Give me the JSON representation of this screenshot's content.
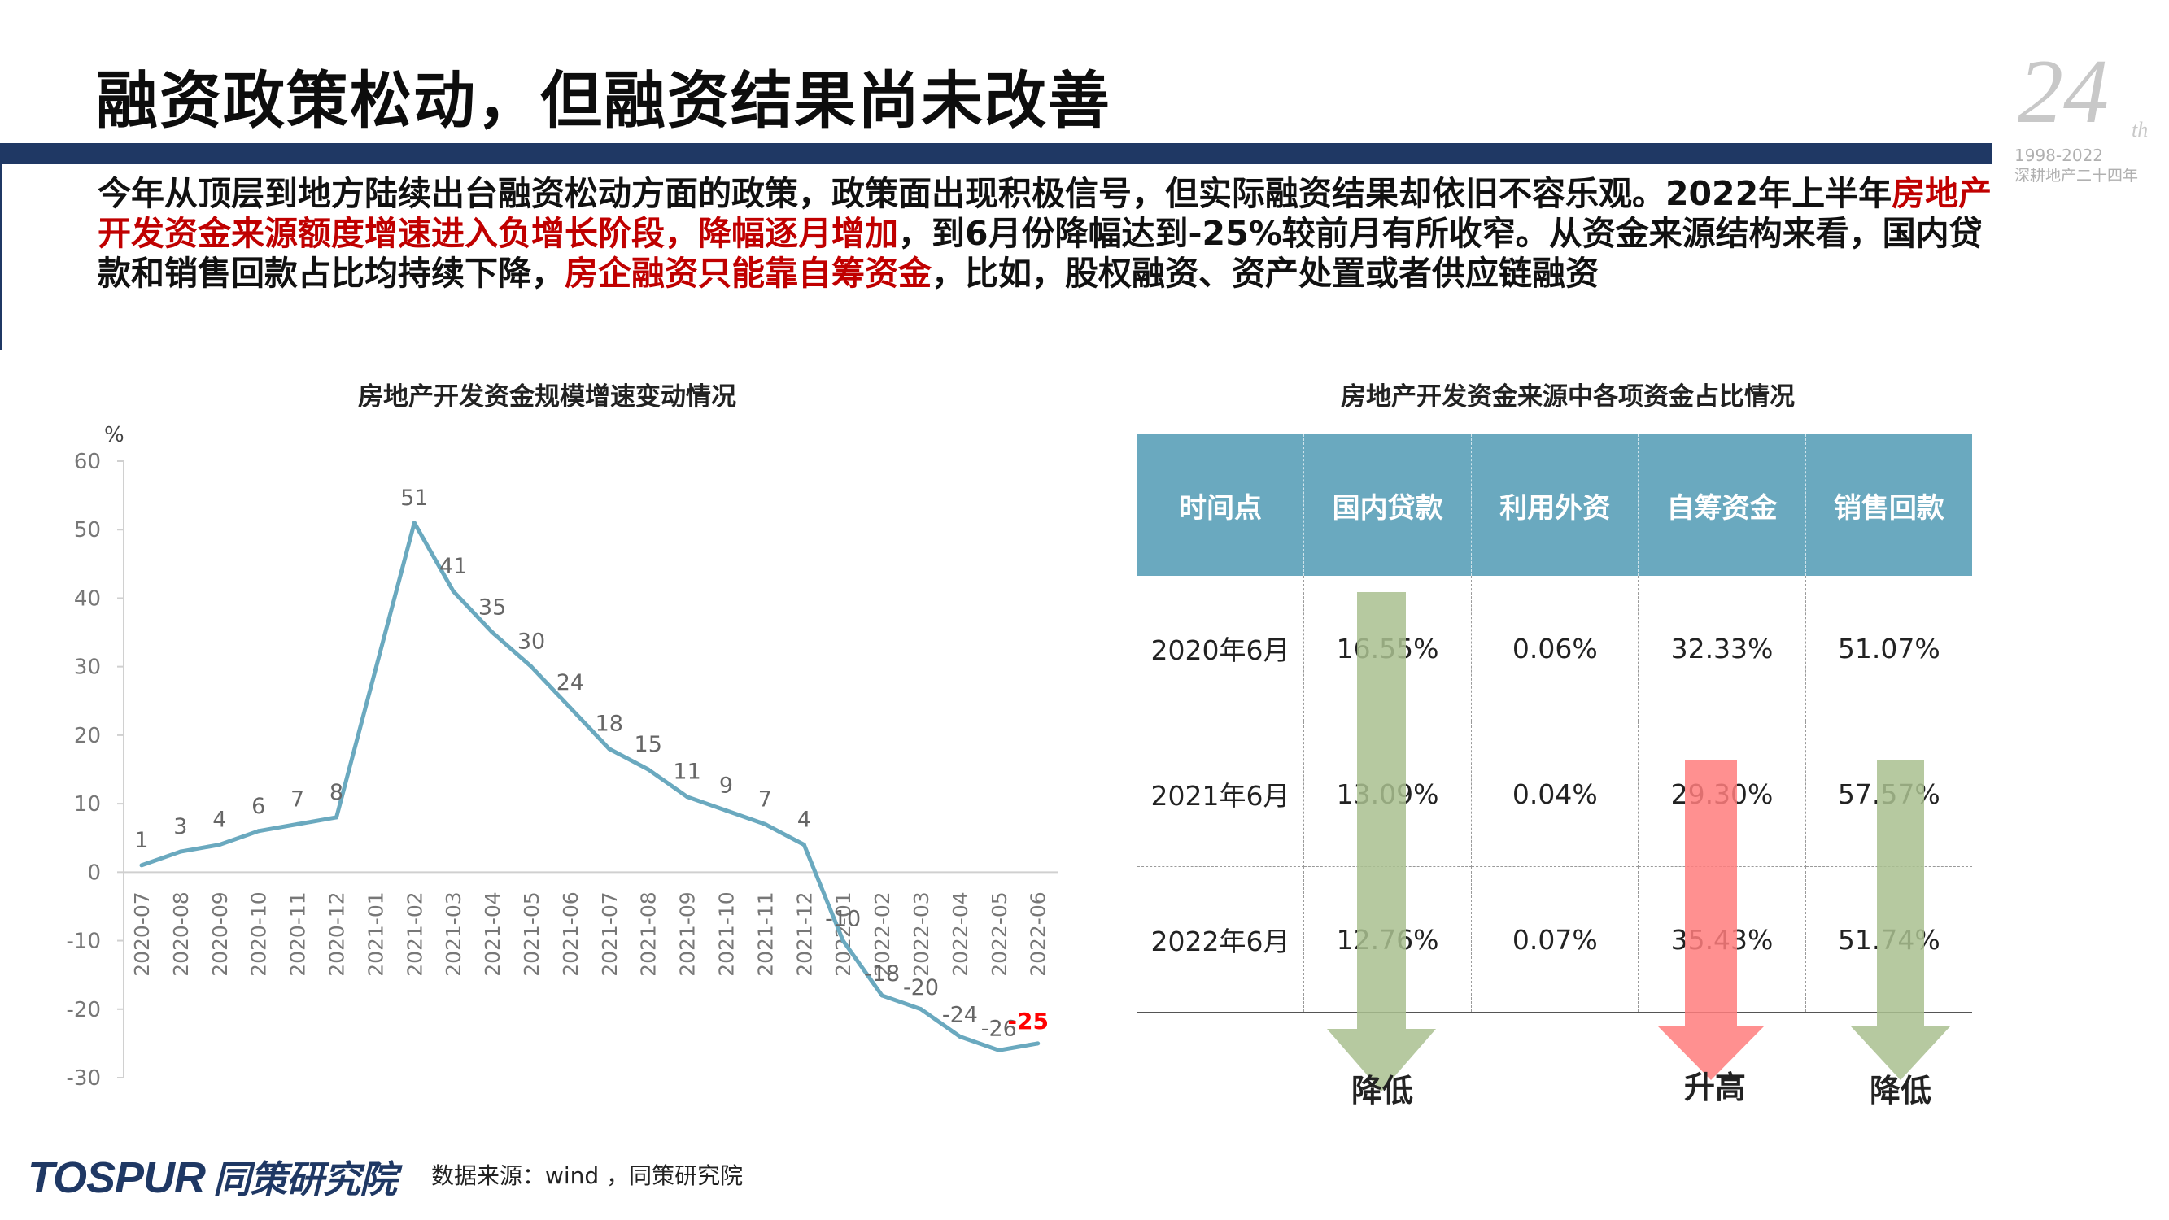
{
  "title": "融资政策松动，但融资结果尚未改善",
  "anniversary": {
    "number": "24",
    "suffix": "th",
    "years": "1998-2022",
    "tagline": "深耕地产二十四年"
  },
  "intro": {
    "p1": "今年从顶层到地方陆续出台融资松动方面的政策，政策面出现积极信号，但实际融资结果却依旧不容乐观。2022年上半年",
    "h1": "房地产开发资金来源额度增速进入负增长阶段，降幅逐月增加",
    "p2": "，到6月份降幅达到-25%较前月有所收窄。从资金来源结构来看，国内贷款和销售回款占比均持续下降，",
    "h2": "房企融资只能靠自筹资金",
    "p3": "，比如，股权融资、资产处置或者供应链融资"
  },
  "left_chart_title": "房地产开发资金规模增速变动情况",
  "right_chart_title": "房地产开发资金来源中各项资金占比情况",
  "chart_data": {
    "type": "line",
    "title": "房地产开发资金规模增速变动情况",
    "ylabel": "%",
    "xlabel": "",
    "ylim": [
      -30,
      60
    ],
    "yticks": [
      "60",
      "50",
      "40",
      "30",
      "20",
      "10",
      "0",
      "-10",
      "-20",
      "-30"
    ],
    "categories": [
      "2020-07",
      "2020-08",
      "2020-09",
      "2020-10",
      "2020-11",
      "2020-12",
      "2021-01",
      "2021-02",
      "2021-03",
      "2021-04",
      "2021-05",
      "2021-06",
      "2021-07",
      "2021-08",
      "2021-09",
      "2021-10",
      "2021-11",
      "2021-12",
      "2022-01",
      "2022-02",
      "2022-03",
      "2022-04",
      "2022-05",
      "2022-06"
    ],
    "values": [
      1,
      3,
      4,
      6,
      7,
      8,
      null,
      51,
      41,
      35,
      30,
      24,
      18,
      15,
      11,
      9,
      7,
      4,
      -10,
      -18,
      -20,
      -24,
      -26,
      -25
    ],
    "labels": [
      "1",
      "3",
      "4",
      "6",
      "7",
      "8",
      "",
      "51",
      "41",
      "35",
      "30",
      "24",
      "18",
      "15",
      "11",
      "9",
      "7",
      "4",
      "-10",
      "-18",
      "-20",
      "-24",
      "-26",
      "-25"
    ],
    "line_color": "#6aa9bf",
    "highlight_color": "#ff0000",
    "grid": false
  },
  "table": {
    "headers": [
      "时间点",
      "国内贷款",
      "利用外资",
      "自筹资金",
      "销售回款"
    ],
    "rows": [
      [
        "2020年6月",
        "16.55%",
        "0.06%",
        "32.33%",
        "51.07%"
      ],
      [
        "2021年6月",
        "13.09%",
        "0.04%",
        "29.30%",
        "57.57%"
      ],
      [
        "2022年6月",
        "12.76%",
        "0.07%",
        "35.43%",
        "51.74%"
      ]
    ],
    "header_color": "#6aa9bf"
  },
  "arrows": {
    "domestic": "降低",
    "self_raised": "升高",
    "sales": "降低",
    "down_color": "#a9c08f",
    "up_color": "#ff7c7c"
  },
  "footer": {
    "logo_en": "TOSPUR",
    "logo_cn": "同策研究院",
    "source": "数据来源：wind ，同策研究院"
  }
}
